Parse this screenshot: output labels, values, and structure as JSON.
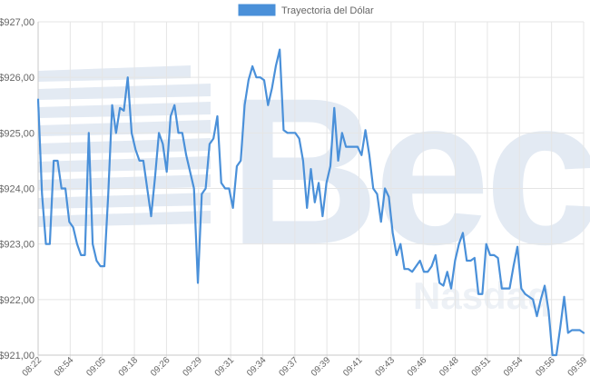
{
  "watermark": {
    "text": "Bec",
    "tagline": "Nasdaq"
  },
  "chart_data": {
    "type": "line",
    "title": "",
    "legend": {
      "placement": "top-center",
      "entries": [
        "Trayectoria del Dólar"
      ]
    },
    "grid": true,
    "ylim": [
      921.0,
      927.0
    ],
    "y_ticks": [
      "$927,00",
      "$926,00",
      "$925,00",
      "$924,00",
      "$923,00",
      "$922,00",
      "$921,00"
    ],
    "x_tick_labels": [
      "08:22",
      "08:54",
      "09:05",
      "09:18",
      "09:26",
      "09:29",
      "09:31",
      "09:34",
      "09:37",
      "09:39",
      "09:41",
      "09:43",
      "09:46",
      "09:48",
      "09:51",
      "09:54",
      "09:56",
      "09:59"
    ],
    "series": [
      {
        "name": "Trayectoria del Dólar",
        "color": "#4a90d9",
        "values": [
          925.6,
          923.9,
          923.0,
          923.0,
          924.5,
          924.5,
          924.0,
          924.0,
          923.4,
          923.3,
          923.0,
          922.8,
          922.8,
          925.0,
          923.0,
          922.7,
          922.6,
          922.6,
          923.9,
          925.5,
          925.0,
          925.45,
          925.4,
          926.0,
          925.0,
          924.7,
          924.5,
          924.5,
          924.0,
          923.5,
          924.2,
          925.0,
          924.8,
          924.3,
          925.3,
          925.5,
          925.0,
          925.0,
          924.6,
          924.3,
          924.0,
          922.3,
          923.9,
          924.0,
          924.8,
          924.9,
          925.3,
          924.1,
          924.0,
          924.0,
          923.65,
          924.4,
          924.5,
          925.5,
          925.95,
          926.2,
          926.0,
          926.0,
          925.95,
          925.5,
          925.8,
          926.2,
          926.5,
          925.05,
          925.0,
          925.0,
          925.0,
          924.9,
          924.5,
          923.65,
          924.35,
          923.75,
          924.1,
          923.5,
          924.1,
          924.4,
          925.45,
          924.5,
          925.0,
          924.75,
          924.75,
          924.75,
          924.75,
          924.6,
          925.05,
          924.6,
          924.0,
          923.9,
          923.4,
          924.0,
          923.85,
          923.2,
          922.8,
          923.0,
          922.55,
          922.55,
          922.5,
          922.6,
          922.7,
          922.5,
          922.5,
          922.6,
          922.8,
          922.3,
          922.25,
          922.5,
          922.2,
          922.7,
          923.0,
          923.2,
          922.7,
          922.7,
          922.75,
          922.1,
          922.1,
          923.0,
          922.8,
          922.8,
          922.75,
          922.2,
          922.2,
          922.2,
          922.6,
          922.95,
          922.2,
          922.1,
          922.05,
          922.0,
          921.7,
          922.0,
          922.25,
          921.8,
          921.0,
          921.0,
          921.5,
          922.05,
          921.4,
          921.45,
          921.45,
          921.45,
          921.4
        ]
      }
    ]
  }
}
